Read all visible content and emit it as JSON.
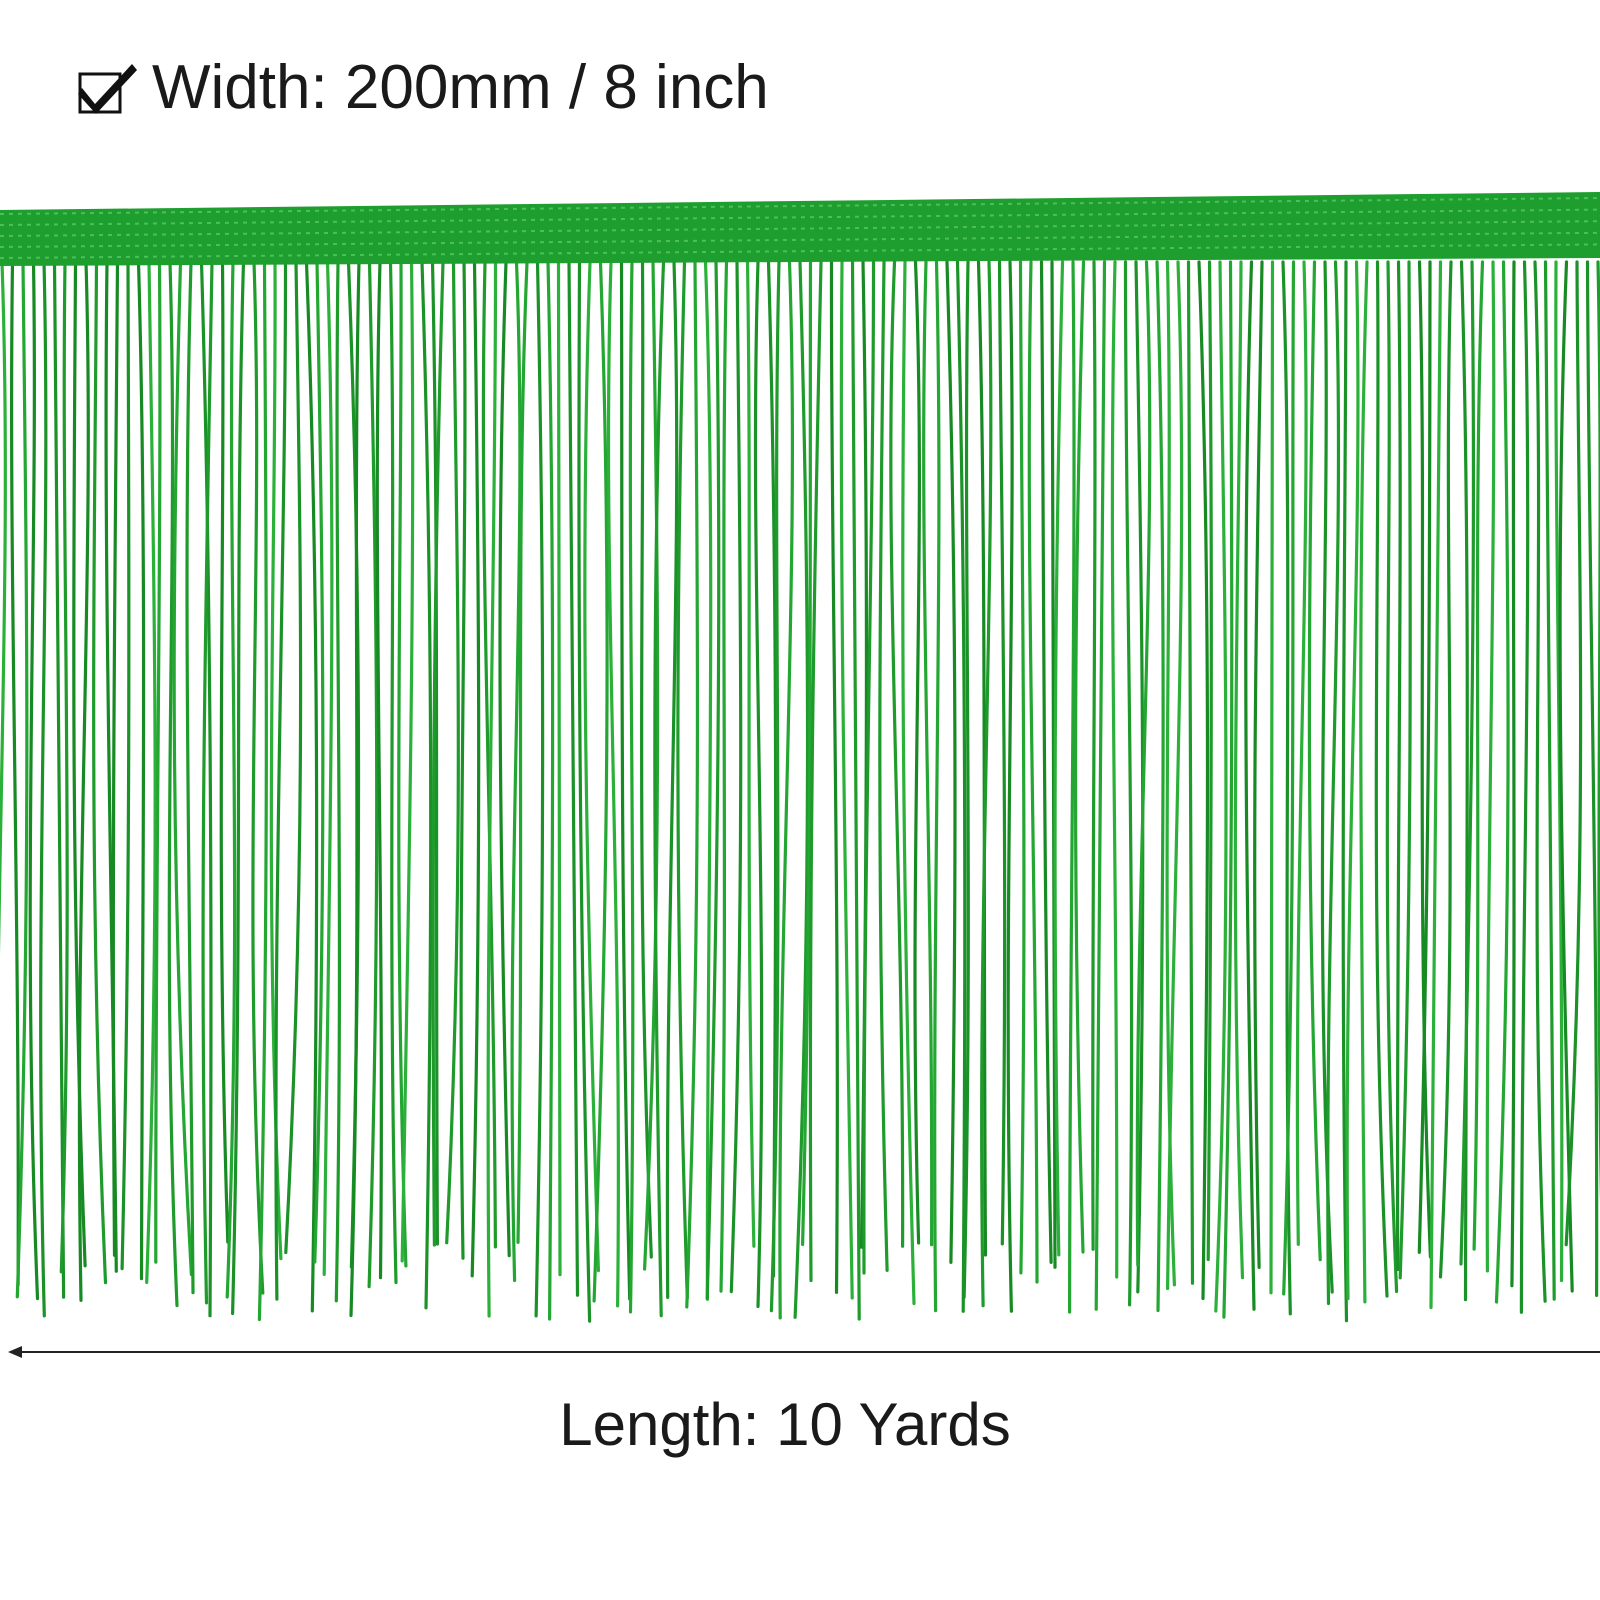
{
  "width_label": "Width: 200mm / 8 inch",
  "length_label": "Length: 10 Yards"
}
